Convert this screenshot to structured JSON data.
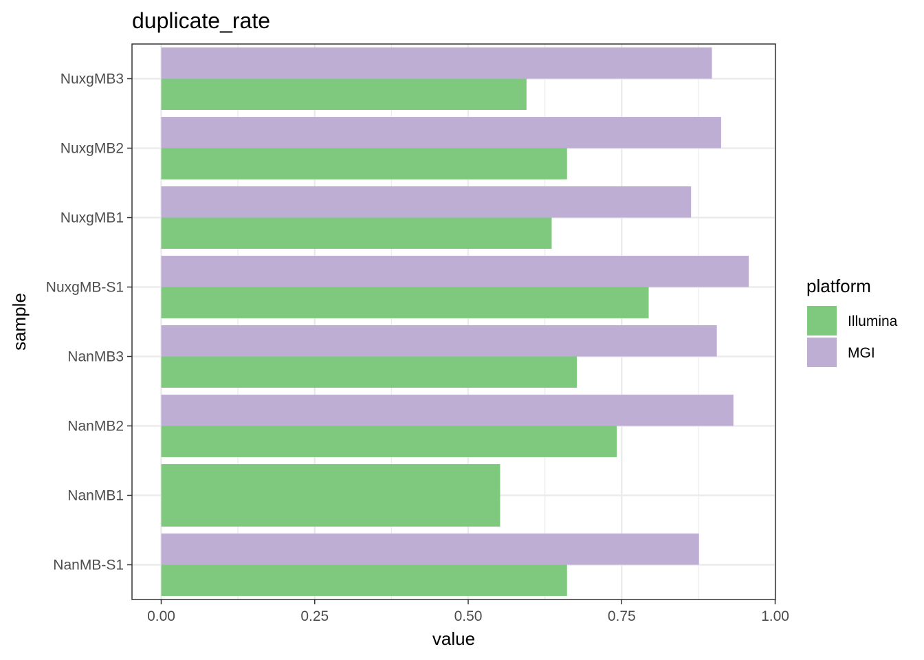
{
  "chart_data": {
    "type": "bar",
    "orientation": "horizontal",
    "title": "duplicate_rate",
    "xlabel": "value",
    "ylabel": "sample",
    "xlim": [
      0,
      1
    ],
    "x_ticks": [
      "0.00",
      "0.25",
      "0.50",
      "0.75",
      "1.00"
    ],
    "categories": [
      "NuxgMB3",
      "NuxgMB2",
      "NuxgMB1",
      "NuxgMB-S1",
      "NanMB3",
      "NanMB2",
      "NanMB1",
      "NanMB-S1"
    ],
    "series": [
      {
        "name": "Illumina",
        "color": "#7fc97f",
        "values": [
          0.595,
          0.661,
          0.636,
          0.794,
          0.677,
          0.742,
          0.552,
          0.661
        ]
      },
      {
        "name": "MGI",
        "color": "#beaed4",
        "values": [
          0.897,
          0.912,
          0.863,
          0.957,
          0.905,
          0.932,
          null,
          0.876
        ]
      }
    ],
    "grid": true,
    "legend": {
      "title": "platform",
      "position": "right"
    }
  }
}
